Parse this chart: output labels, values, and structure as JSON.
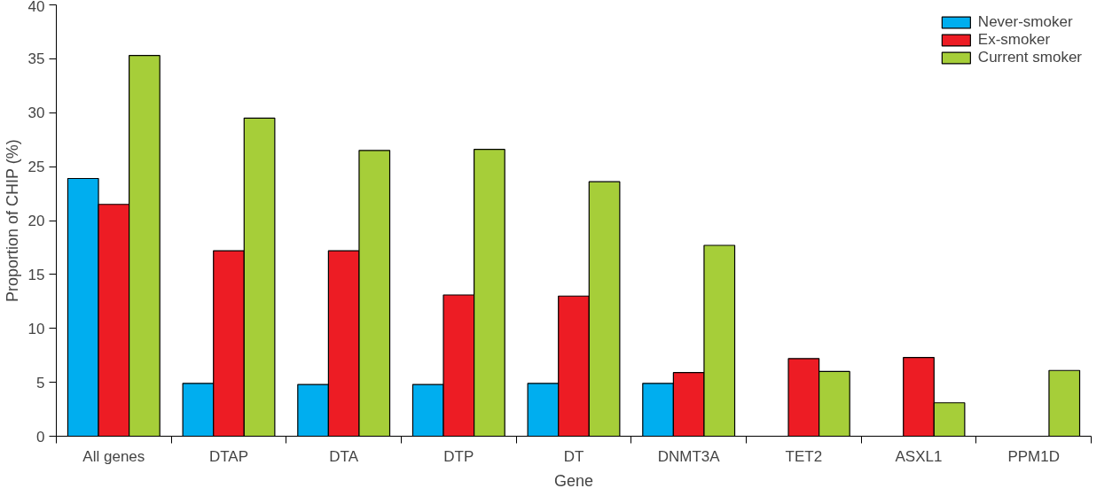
{
  "chart_data": {
    "type": "bar",
    "xlabel": "Gene",
    "ylabel": "Proportion of CHIP (%)",
    "categories": [
      "All genes",
      "DTAP",
      "DTA",
      "DTP",
      "DT",
      "DNMT3A",
      "TET2",
      "ASXL1",
      "PPM1D"
    ],
    "series": [
      {
        "name": "Never-smoker",
        "color": "#00aeef",
        "values": [
          23.9,
          4.9,
          4.8,
          4.8,
          4.9,
          4.9,
          null,
          null,
          null
        ]
      },
      {
        "name": "Ex-smoker",
        "color": "#ed1c24",
        "values": [
          21.5,
          17.2,
          17.2,
          13.1,
          13.0,
          5.9,
          7.2,
          7.3,
          null
        ]
      },
      {
        "name": "Current smoker",
        "color": "#a6ce39",
        "values": [
          35.3,
          29.5,
          26.5,
          26.6,
          23.6,
          17.7,
          6.0,
          3.1,
          6.1
        ]
      }
    ],
    "ylim": [
      0,
      40
    ],
    "yticks": [
      0,
      5,
      10,
      15,
      20,
      25,
      30,
      35,
      40
    ],
    "grid": false,
    "legend": "top right"
  }
}
